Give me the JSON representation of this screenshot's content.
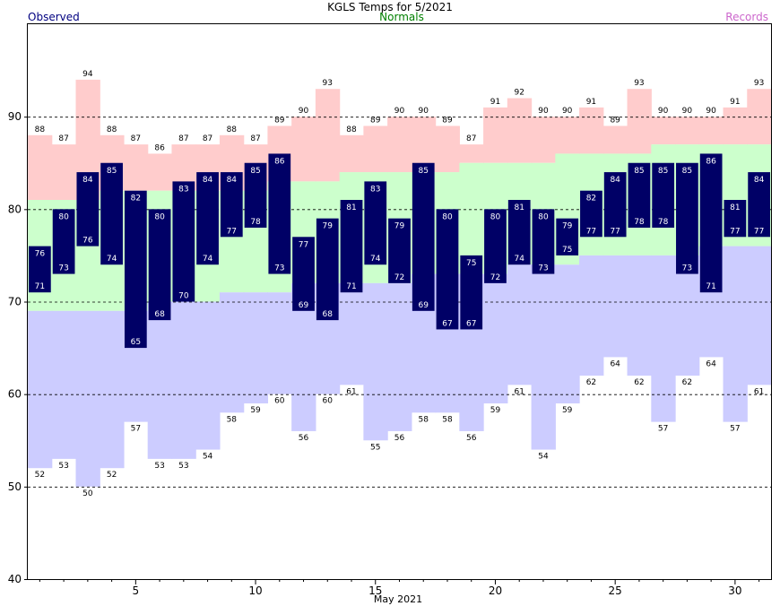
{
  "chart_data": {
    "type": "bar",
    "title": "KGLS Temps for 5/2021",
    "xlabel": "May 2021",
    "ylabel": "",
    "legend": {
      "observed": "Observed",
      "normals": "Normals",
      "records": "Records"
    },
    "ylim": [
      40,
      100
    ],
    "yticks": [
      40,
      50,
      60,
      70,
      80,
      90
    ],
    "xticks": [
      5,
      10,
      15,
      20,
      25,
      30
    ],
    "grid_lines": [
      50,
      60,
      70,
      80,
      90
    ],
    "days": [
      1,
      2,
      3,
      4,
      5,
      6,
      7,
      8,
      9,
      10,
      11,
      12,
      13,
      14,
      15,
      16,
      17,
      18,
      19,
      20,
      21,
      22,
      23,
      24,
      25,
      26,
      27,
      28,
      29,
      30,
      31
    ],
    "series": [
      {
        "name": "Observed",
        "key": "obs_high",
        "values": [
          76,
          80,
          84,
          85,
          82,
          80,
          83,
          84,
          84,
          85,
          86,
          77,
          79,
          81,
          83,
          79,
          85,
          80,
          75,
          80,
          81,
          80,
          79,
          82,
          84,
          85,
          85,
          85,
          86,
          81,
          84
        ]
      },
      {
        "name": "Observed",
        "key": "obs_low",
        "values": [
          71,
          73,
          76,
          74,
          65,
          68,
          70,
          74,
          77,
          78,
          73,
          69,
          68,
          71,
          74,
          72,
          69,
          67,
          67,
          72,
          74,
          73,
          75,
          77,
          77,
          78,
          78,
          73,
          71,
          77,
          77
        ]
      },
      {
        "name": "Normals",
        "key": "normal_high",
        "values": [
          81,
          81,
          81,
          82,
          82,
          82,
          82,
          82,
          82,
          82,
          83,
          83,
          83,
          84,
          84,
          84,
          84,
          84,
          85,
          85,
          85,
          85,
          86,
          86,
          86,
          86,
          87,
          87,
          87,
          87,
          87
        ]
      },
      {
        "name": "Normals",
        "key": "normal_low",
        "values": [
          69,
          69,
          69,
          69,
          69,
          70,
          70,
          70,
          71,
          71,
          71,
          72,
          72,
          72,
          72,
          72,
          73,
          73,
          73,
          73,
          74,
          74,
          74,
          75,
          75,
          75,
          75,
          75,
          76,
          76,
          76
        ]
      },
      {
        "name": "Records",
        "key": "record_high",
        "values": [
          88,
          87,
          94,
          88,
          87,
          86,
          87,
          87,
          88,
          87,
          89,
          90,
          93,
          88,
          89,
          90,
          90,
          89,
          87,
          91,
          92,
          90,
          90,
          91,
          89,
          93,
          90,
          90,
          90,
          91,
          93
        ]
      },
      {
        "name": "Records",
        "key": "record_low",
        "values": [
          52,
          53,
          50,
          52,
          57,
          53,
          53,
          54,
          58,
          59,
          60,
          56,
          60,
          61,
          55,
          56,
          58,
          58,
          56,
          59,
          61,
          54,
          59,
          62,
          64,
          62,
          57,
          62,
          64,
          57,
          61
        ]
      }
    ],
    "colors": {
      "observed": "#000066",
      "normals": "#ccffcc",
      "records_high": "#ffcccc",
      "records_low": "#ccccff",
      "observed_legend": "#000080",
      "normals_legend": "#008000",
      "records_legend": "#cc66cc",
      "grid": "#000000"
    }
  }
}
